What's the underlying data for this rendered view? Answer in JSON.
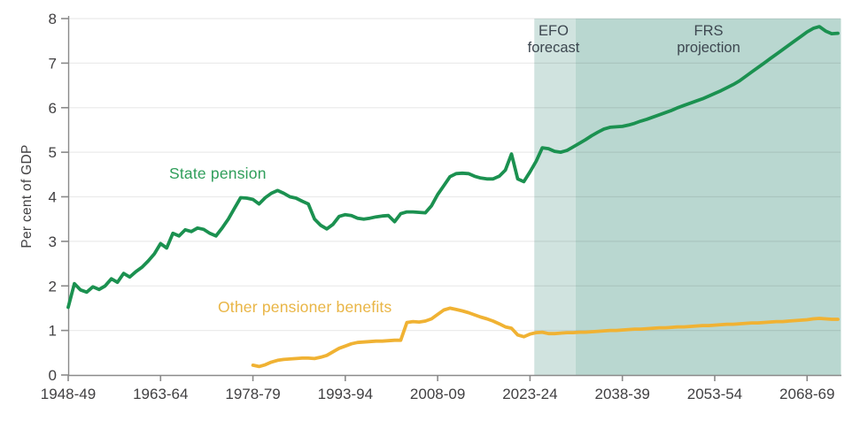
{
  "chart": {
    "ylabel": "Per cent of GDP",
    "state_pension_label": "State pension",
    "other_benefits_label": "Other pensioner benefits",
    "annotations": {
      "efo": {
        "line1": "EFO",
        "line2": "forecast"
      },
      "frs": {
        "line1": "FRS",
        "line2": "projection"
      }
    }
  },
  "chart_data": {
    "type": "line",
    "title": "",
    "xlabel": "",
    "ylabel": "Per cent of GDP",
    "ylim": [
      0,
      8
    ],
    "yticks": [
      0,
      1,
      2,
      3,
      4,
      5,
      6,
      7,
      8
    ],
    "x_range": [
      1948,
      2073
    ],
    "grid": "horizontal",
    "legend_position": "inline-labels",
    "colors": {
      "state_pension_line": "#1b9150",
      "other_benefits_line": "#f0b233",
      "efo_band": "#d0e3df",
      "frs_band": "#b9d7d0",
      "axis": "#8a8a8a",
      "gridline": "rgba(0,0,0,0.08)",
      "tick_text": "#414042"
    },
    "xticks": [
      {
        "year": 1948,
        "label": "1948-49"
      },
      {
        "year": 1963,
        "label": "1963-64"
      },
      {
        "year": 1978,
        "label": "1978-79"
      },
      {
        "year": 1993,
        "label": "1993-94"
      },
      {
        "year": 2008,
        "label": "2008-09"
      },
      {
        "year": 2023,
        "label": "2023-24"
      },
      {
        "year": 2038,
        "label": "2038-39"
      },
      {
        "year": 2053,
        "label": "2053-54"
      },
      {
        "year": 2068,
        "label": "2068-69"
      }
    ],
    "bands": [
      {
        "id": "efo-forecast-band",
        "label": "EFO forecast",
        "from": 2023.7,
        "to": 2030.4,
        "color": "#d0e3df"
      },
      {
        "id": "frs-projection-band",
        "label": "FRS projection",
        "from": 2030.4,
        "to": 2073.5,
        "color": "#b9d7d0"
      }
    ],
    "series": [
      {
        "name": "State pension",
        "color": "#1b9150",
        "start_year": 1948,
        "values": [
          1.52,
          2.05,
          1.91,
          1.86,
          1.98,
          1.92,
          2.0,
          2.16,
          2.08,
          2.28,
          2.2,
          2.32,
          2.42,
          2.56,
          2.72,
          2.95,
          2.85,
          3.18,
          3.12,
          3.26,
          3.22,
          3.3,
          3.27,
          3.18,
          3.12,
          3.3,
          3.5,
          3.74,
          3.98,
          3.97,
          3.94,
          3.84,
          3.98,
          4.08,
          4.14,
          4.08,
          4.0,
          3.97,
          3.9,
          3.84,
          3.5,
          3.36,
          3.28,
          3.38,
          3.56,
          3.6,
          3.58,
          3.52,
          3.5,
          3.52,
          3.55,
          3.57,
          3.58,
          3.44,
          3.62,
          3.66,
          3.66,
          3.65,
          3.64,
          3.8,
          4.05,
          4.25,
          4.45,
          4.52,
          4.53,
          4.52,
          4.46,
          4.42,
          4.4,
          4.4,
          4.46,
          4.6,
          4.96,
          4.4,
          4.34,
          4.56,
          4.8,
          5.1,
          5.08,
          5.02,
          5.0,
          5.04,
          5.12,
          5.2,
          5.28,
          5.37,
          5.45,
          5.52,
          5.56,
          5.57,
          5.58,
          5.61,
          5.65,
          5.7,
          5.74,
          5.79,
          5.84,
          5.89,
          5.94,
          6.0,
          6.05,
          6.1,
          6.15,
          6.2,
          6.26,
          6.32,
          6.38,
          6.45,
          6.52,
          6.6,
          6.7,
          6.8,
          6.9,
          7.0,
          7.1,
          7.2,
          7.3,
          7.4,
          7.5,
          7.6,
          7.7,
          7.78,
          7.82,
          7.72,
          7.66,
          7.67
        ]
      },
      {
        "name": "Other pensioner benefits",
        "color": "#f0b233",
        "start_year": 1978,
        "values": [
          0.22,
          0.19,
          0.23,
          0.29,
          0.33,
          0.35,
          0.36,
          0.37,
          0.38,
          0.38,
          0.37,
          0.4,
          0.44,
          0.52,
          0.6,
          0.65,
          0.7,
          0.73,
          0.74,
          0.75,
          0.76,
          0.76,
          0.77,
          0.78,
          0.78,
          1.18,
          1.2,
          1.19,
          1.21,
          1.26,
          1.36,
          1.46,
          1.5,
          1.47,
          1.44,
          1.4,
          1.35,
          1.3,
          1.26,
          1.21,
          1.15,
          1.08,
          1.05,
          0.9,
          0.86,
          0.92,
          0.95,
          0.96,
          0.93,
          0.93,
          0.94,
          0.95,
          0.95,
          0.96,
          0.96,
          0.97,
          0.98,
          0.99,
          1.0,
          1.0,
          1.01,
          1.02,
          1.03,
          1.03,
          1.04,
          1.05,
          1.06,
          1.06,
          1.07,
          1.08,
          1.08,
          1.09,
          1.1,
          1.11,
          1.11,
          1.12,
          1.13,
          1.14,
          1.14,
          1.15,
          1.16,
          1.17,
          1.17,
          1.18,
          1.19,
          1.2,
          1.2,
          1.21,
          1.22,
          1.23,
          1.24,
          1.26,
          1.27,
          1.26,
          1.25,
          1.25
        ]
      }
    ]
  }
}
